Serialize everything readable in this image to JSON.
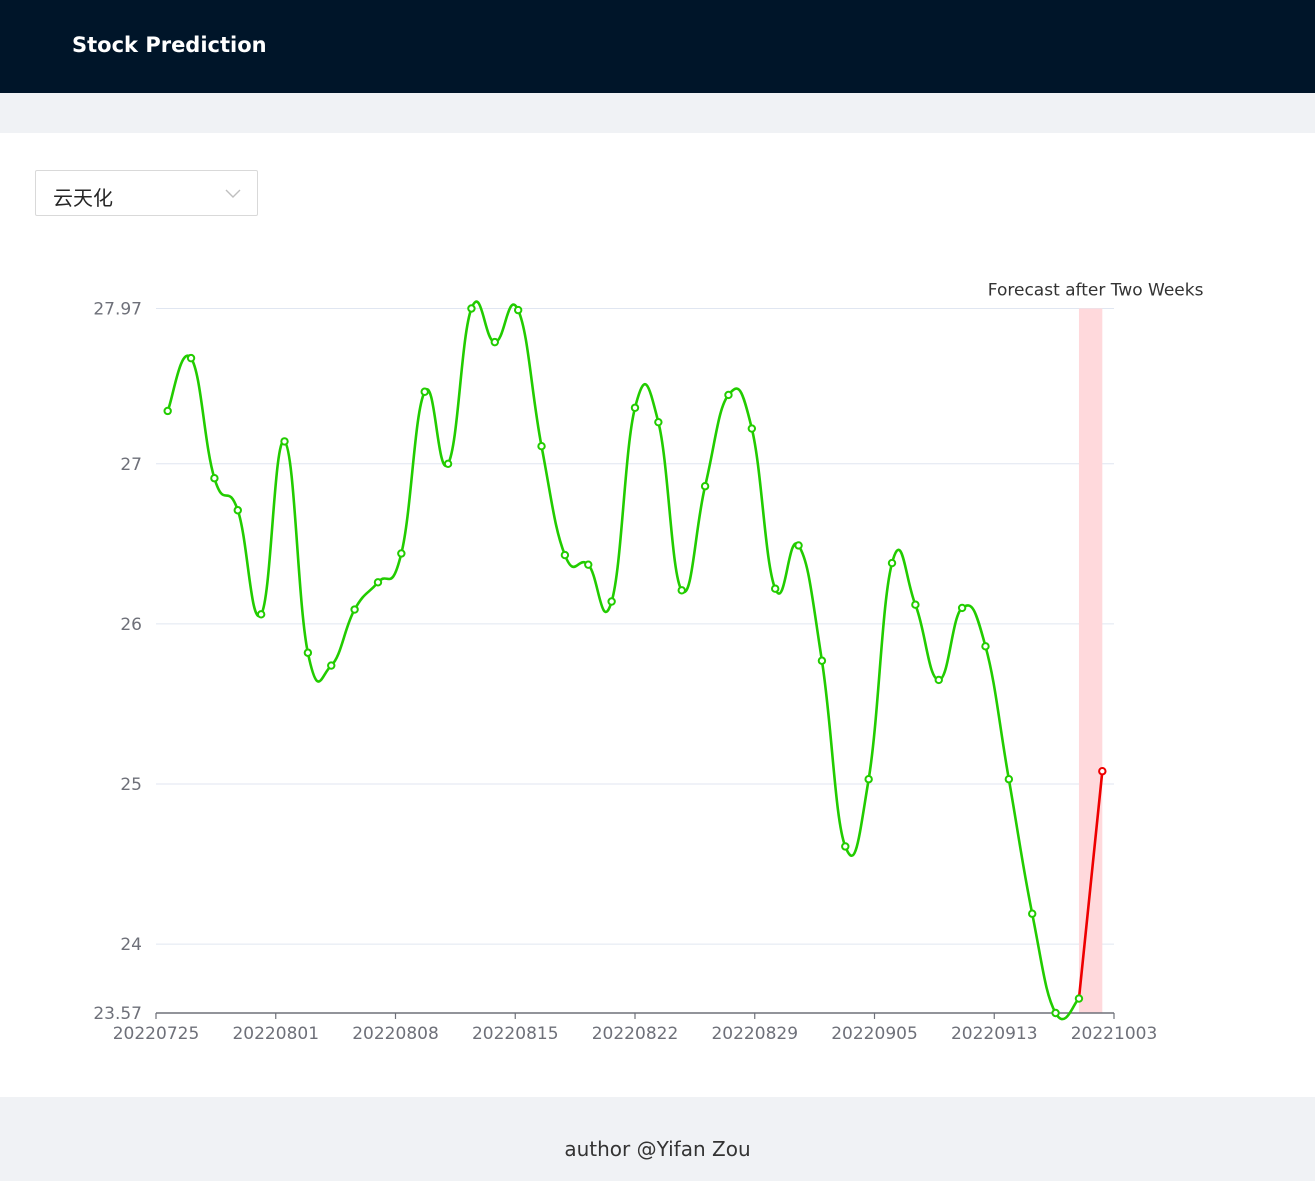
{
  "header": {
    "title": "Stock Prediction"
  },
  "selector": {
    "value": "云天化"
  },
  "footer": {
    "text": "author @Yifan Zou"
  },
  "colors": {
    "header_bg": "#001529",
    "history_line": "#22cc00",
    "forecast_line": "#ee0000",
    "forecast_band": "#ffd9dc"
  },
  "chart_data": {
    "type": "line",
    "ylim": [
      23.57,
      27.97
    ],
    "yticks": [
      23.57,
      24,
      25,
      26,
      27,
      27.97
    ],
    "ytick_labels": [
      "23.57",
      "24",
      "25",
      "26",
      "27",
      "27.97"
    ],
    "xtick_labels": [
      "20220725",
      "20220801",
      "20220808",
      "20220815",
      "20220822",
      "20220829",
      "20220905",
      "20220913",
      "20221003"
    ],
    "grid": true,
    "markArea_label": "Forecast after Two Weeks",
    "series": [
      {
        "values": [
          27.33,
          27.66,
          26.91,
          26.71,
          26.06,
          27.14,
          25.82,
          25.74,
          26.09,
          26.26,
          26.44,
          27.45,
          27.0,
          27.97,
          27.76,
          27.96,
          27.11,
          26.43,
          26.37,
          26.14,
          27.35,
          27.26,
          26.21,
          26.86,
          27.43,
          27.22,
          26.22,
          26.49,
          25.77,
          24.61,
          25.03,
          26.38,
          26.12,
          25.65,
          26.1,
          25.86,
          25.03,
          24.19,
          23.57,
          23.66
        ]
      },
      {
        "values": [
          25.08
        ]
      }
    ]
  }
}
